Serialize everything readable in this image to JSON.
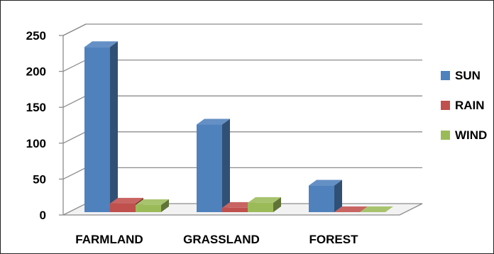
{
  "chart_data": {
    "type": "bar",
    "style": "3d-clustered-column",
    "categories": [
      "FARMLAND",
      "GRASSLAND",
      "FOREST"
    ],
    "series": [
      {
        "name": "SUN",
        "values": [
          230,
          122,
          37
        ],
        "color": "#4F81BD"
      },
      {
        "name": "RAIN",
        "values": [
          12,
          6,
          0
        ],
        "color": "#C0504D"
      },
      {
        "name": "WIND",
        "values": [
          10,
          13,
          0
        ],
        "color": "#9BBB59"
      }
    ],
    "yticks": [
      "0",
      "50",
      "100",
      "150",
      "200",
      "250"
    ],
    "ylim": [
      0,
      250
    ],
    "grid": true,
    "legend": "right"
  }
}
